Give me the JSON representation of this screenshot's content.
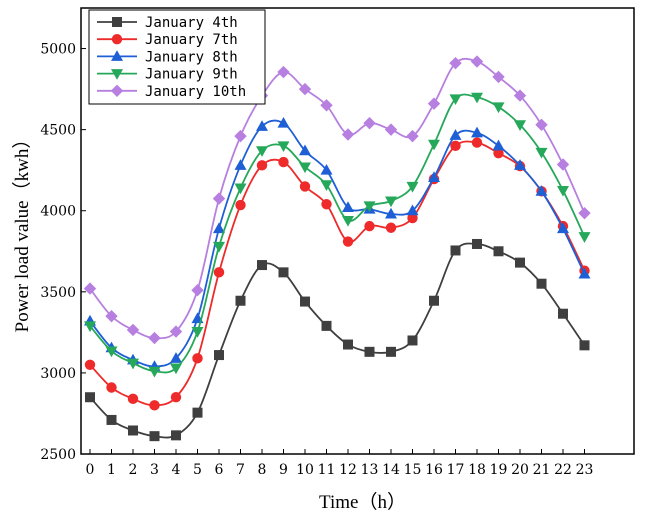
{
  "chart_data": {
    "type": "line",
    "title": "",
    "xlabel": "Time（h）",
    "ylabel": "Power load value（kwh）",
    "x": [
      0,
      1,
      2,
      3,
      4,
      5,
      6,
      7,
      8,
      9,
      10,
      11,
      12,
      13,
      14,
      15,
      16,
      17,
      18,
      19,
      20,
      21,
      22,
      23
    ],
    "x_ticks": [
      0,
      1,
      2,
      3,
      4,
      5,
      6,
      7,
      8,
      9,
      10,
      11,
      12,
      13,
      14,
      15,
      16,
      17,
      18,
      19,
      20,
      21,
      22,
      23
    ],
    "xlim": [
      0,
      24.7
    ],
    "ylim": [
      2500,
      5250
    ],
    "y_ticks": [
      2500,
      3000,
      3500,
      4000,
      4500,
      5000
    ],
    "grid": false,
    "legend_position": "top-left",
    "series": [
      {
        "name": "January 4th",
        "color": "#3f3f3f",
        "marker": "square",
        "values": [
          2850,
          2710,
          2645,
          2610,
          2615,
          2755,
          3110,
          3445,
          3665,
          3620,
          3440,
          3290,
          3175,
          3130,
          3130,
          3200,
          3445,
          3755,
          3795,
          3750,
          3680,
          3550,
          3365,
          3170
        ]
      },
      {
        "name": "January 7th",
        "color": "#ee2a2a",
        "marker": "circle",
        "values": [
          3050,
          2910,
          2840,
          2800,
          2850,
          3090,
          3620,
          4035,
          4280,
          4300,
          4150,
          4040,
          3810,
          3905,
          3895,
          3955,
          4195,
          4400,
          4420,
          4355,
          4275,
          4120,
          3905,
          3630
        ]
      },
      {
        "name": "January 8th",
        "color": "#1f5fd6",
        "marker": "triangle-up",
        "values": [
          3320,
          3155,
          3080,
          3040,
          3090,
          3335,
          3890,
          4280,
          4520,
          4540,
          4370,
          4250,
          4020,
          4010,
          3980,
          4000,
          4205,
          4465,
          4480,
          4400,
          4280,
          4120,
          3890,
          3610
        ]
      },
      {
        "name": "January 9th",
        "color": "#26a85a",
        "marker": "triangle-down",
        "values": [
          3290,
          3135,
          3060,
          3010,
          3030,
          3255,
          3780,
          4140,
          4370,
          4400,
          4270,
          4160,
          3940,
          4030,
          4060,
          4150,
          4410,
          4690,
          4700,
          4640,
          4530,
          4360,
          4125,
          3840
        ]
      },
      {
        "name": "January 10th",
        "color": "#b77fe0",
        "marker": "diamond",
        "values": [
          3520,
          3350,
          3265,
          3215,
          3255,
          3510,
          4075,
          4460,
          4710,
          4855,
          4750,
          4650,
          4470,
          4540,
          4500,
          4460,
          4660,
          4910,
          4920,
          4825,
          4710,
          4530,
          4285,
          3985
        ]
      }
    ]
  }
}
